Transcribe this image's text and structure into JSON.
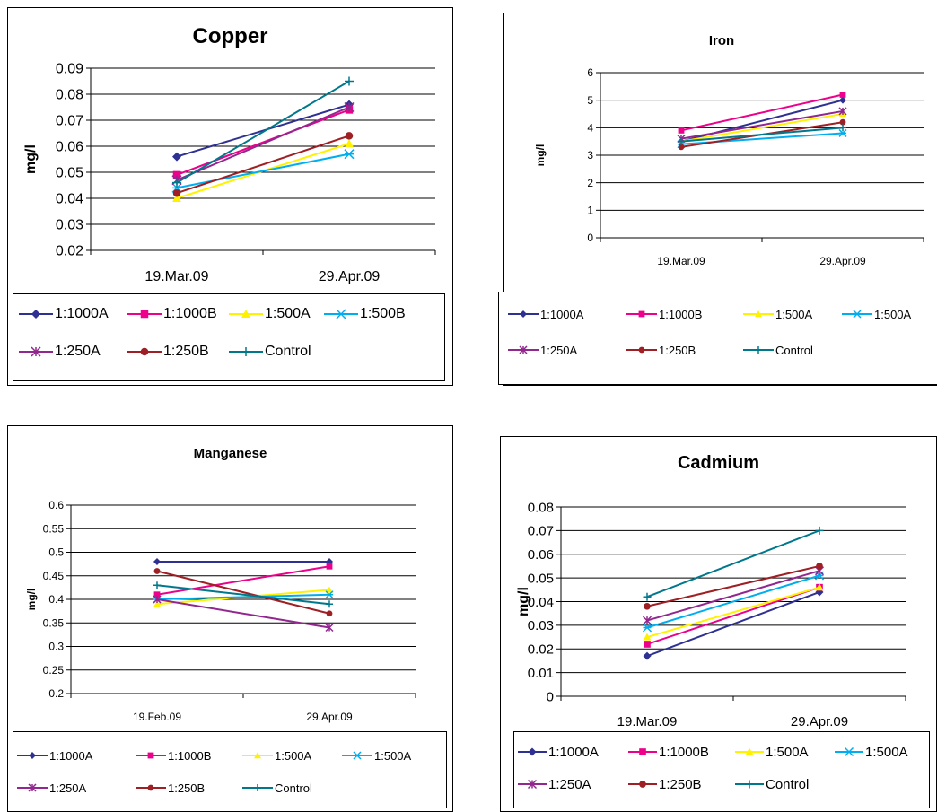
{
  "chart_data": [
    {
      "type": "line",
      "title": "Copper",
      "ylabel": "mg/l",
      "xlabel": "",
      "categories": [
        "19.Mar.09",
        "29.Apr.09"
      ],
      "ylim": [
        0.02,
        0.09
      ],
      "ytick_step": 0.01,
      "yticks": [
        "0.02",
        "0.03",
        "0.04",
        "0.05",
        "0.06",
        "0.07",
        "0.08",
        "0.09"
      ],
      "grid": true,
      "legend_position": "bottom",
      "series": [
        {
          "name": "1:1000A",
          "values": [
            0.056,
            0.076
          ],
          "color": "#2E3192",
          "marker": "diamond"
        },
        {
          "name": "1:1000B",
          "values": [
            0.049,
            0.074
          ],
          "color": "#EC008C",
          "marker": "square"
        },
        {
          "name": "1:500A",
          "values": [
            0.04,
            0.061
          ],
          "color": "#FFF200",
          "marker": "triangle"
        },
        {
          "name": "1:500B",
          "values": [
            0.044,
            0.057
          ],
          "color": "#00AEEF",
          "marker": "star"
        },
        {
          "name": "1:250A",
          "values": [
            0.047,
            0.075
          ],
          "color": "#92278F",
          "marker": "asterisk"
        },
        {
          "name": "1:250B",
          "values": [
            0.042,
            0.064
          ],
          "color": "#9E1F24",
          "marker": "circle"
        },
        {
          "name": "Control",
          "values": [
            0.046,
            0.085
          ],
          "color": "#00788C",
          "marker": "plus"
        }
      ]
    },
    {
      "type": "line",
      "title": "Iron",
      "ylabel": "mg/l",
      "xlabel": "",
      "categories": [
        "19.Mar.09",
        "29.Apr.09"
      ],
      "ylim": [
        0,
        6
      ],
      "ytick_step": 1,
      "yticks": [
        "0",
        "1",
        "2",
        "3",
        "4",
        "5",
        "6"
      ],
      "grid": true,
      "legend_position": "bottom",
      "series": [
        {
          "name": "1:1000A",
          "values": [
            3.5,
            5.0
          ],
          "color": "#2E3192",
          "marker": "diamond"
        },
        {
          "name": "1:1000B",
          "values": [
            3.9,
            5.2
          ],
          "color": "#EC008C",
          "marker": "square"
        },
        {
          "name": "1:500A",
          "values": [
            3.5,
            4.5
          ],
          "color": "#FFF200",
          "marker": "triangle"
        },
        {
          "name": "1:500A",
          "values": [
            3.4,
            3.8
          ],
          "color": "#00AEEF",
          "marker": "star"
        },
        {
          "name": "1:250A",
          "values": [
            3.6,
            4.6
          ],
          "color": "#92278F",
          "marker": "asterisk"
        },
        {
          "name": "1:250B",
          "values": [
            3.3,
            4.2
          ],
          "color": "#9E1F24",
          "marker": "circle"
        },
        {
          "name": "Control",
          "values": [
            3.5,
            4.0
          ],
          "color": "#00788C",
          "marker": "plus"
        }
      ]
    },
    {
      "type": "line",
      "title": "Manganese",
      "ylabel": "mg/l",
      "xlabel": "",
      "categories": [
        "19.Feb.09",
        "29.Apr.09"
      ],
      "ylim": [
        0.2,
        0.6
      ],
      "ytick_step": 0.05,
      "yticks": [
        "0.2",
        "0.25",
        "0.3",
        "0.35",
        "0.4",
        "0.45",
        "0.5",
        "0.55",
        "0.6"
      ],
      "grid": true,
      "legend_position": "bottom",
      "series": [
        {
          "name": "1:1000A",
          "values": [
            0.48,
            0.48
          ],
          "color": "#2E3192",
          "marker": "diamond"
        },
        {
          "name": "1:1000B",
          "values": [
            0.41,
            0.47
          ],
          "color": "#EC008C",
          "marker": "square"
        },
        {
          "name": "1:500A",
          "values": [
            0.39,
            0.42
          ],
          "color": "#FFF200",
          "marker": "triangle"
        },
        {
          "name": "1:500A",
          "values": [
            0.4,
            0.41
          ],
          "color": "#00AEEF",
          "marker": "star"
        },
        {
          "name": "1:250A",
          "values": [
            0.4,
            0.34
          ],
          "color": "#92278F",
          "marker": "asterisk"
        },
        {
          "name": "1:250B",
          "values": [
            0.46,
            0.37
          ],
          "color": "#9E1F24",
          "marker": "circle"
        },
        {
          "name": "Control",
          "values": [
            0.43,
            0.39
          ],
          "color": "#00788C",
          "marker": "plus"
        }
      ]
    },
    {
      "type": "line",
      "title": "Cadmium",
      "ylabel": "mg/l",
      "xlabel": "",
      "categories": [
        "19.Mar.09",
        "29.Apr.09"
      ],
      "ylim": [
        0,
        0.08
      ],
      "ytick_step": 0.01,
      "yticks": [
        "0",
        "0.01",
        "0.02",
        "0.03",
        "0.04",
        "0.05",
        "0.06",
        "0.07",
        "0.08"
      ],
      "grid": true,
      "legend_position": "bottom",
      "series": [
        {
          "name": "1:1000A",
          "values": [
            0.017,
            0.044
          ],
          "color": "#2E3192",
          "marker": "diamond"
        },
        {
          "name": "1:1000B",
          "values": [
            0.022,
            0.046
          ],
          "color": "#EC008C",
          "marker": "square"
        },
        {
          "name": "1:500A",
          "values": [
            0.025,
            0.046
          ],
          "color": "#FFF200",
          "marker": "triangle"
        },
        {
          "name": "1:500A",
          "values": [
            0.029,
            0.051
          ],
          "color": "#00AEEF",
          "marker": "star"
        },
        {
          "name": "1:250A",
          "values": [
            0.032,
            0.053
          ],
          "color": "#92278F",
          "marker": "asterisk"
        },
        {
          "name": "1:250B",
          "values": [
            0.038,
            0.055
          ],
          "color": "#9E1F24",
          "marker": "circle"
        },
        {
          "name": "Control",
          "values": [
            0.042,
            0.07
          ],
          "color": "#00788C",
          "marker": "plus"
        }
      ]
    }
  ]
}
